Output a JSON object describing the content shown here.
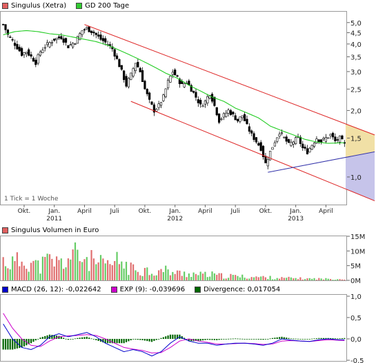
{
  "price_legend": [
    {
      "label": "Singulus (Xetra)",
      "color": "#e06060"
    },
    {
      "label": "GD 200 Tage",
      "color": "#33cc33"
    }
  ],
  "volume_legend": {
    "label": "Singulus Volumen in Euro",
    "color": "#e06060"
  },
  "macd_legend": [
    {
      "label": "MACD (26, 12): -0,022642",
      "color": "#0000cc"
    },
    {
      "label": "EXP (9): -0,039696",
      "color": "#cc00cc"
    },
    {
      "label": "Divergence: 0,017054",
      "color": "#006600"
    }
  ],
  "tick_note": "1 Tick = 1 Woche",
  "chart_data": [
    {
      "type": "candlestick",
      "title": "Singulus (Xetra)",
      "scale": "log",
      "ylim": [
        0.75,
        5.6
      ],
      "y_ticks": [
        "5,0",
        "4,5",
        "4,0",
        "3,5",
        "3,0",
        "2,5",
        "2,0",
        "1,5",
        "1,0"
      ],
      "y_tick_values": [
        5.0,
        4.5,
        4.0,
        3.5,
        3.0,
        2.5,
        2.0,
        1.5,
        1.0
      ],
      "x_ticks": [
        {
          "label": "Okt.",
          "week": 9
        },
        {
          "label": "Jan.",
          "week": 22
        },
        {
          "label": "April",
          "week": 35
        },
        {
          "label": "Juli",
          "week": 48
        },
        {
          "label": "Okt.",
          "week": 61
        },
        {
          "label": "Jan.",
          "week": 74
        },
        {
          "label": "April",
          "week": 87
        },
        {
          "label": "Juli",
          "week": 100
        },
        {
          "label": "Okt.",
          "week": 113
        },
        {
          "label": "Jan.",
          "week": 126
        },
        {
          "label": "April",
          "week": 139
        }
      ],
      "year_labels": [
        {
          "label": "2011",
          "week": 22
        },
        {
          "label": "2012",
          "week": 74
        },
        {
          "label": "2013",
          "week": 126
        }
      ],
      "close_anchors": [
        [
          0,
          4.9
        ],
        [
          2,
          4.4
        ],
        [
          5,
          4.0
        ],
        [
          8,
          3.6
        ],
        [
          10,
          3.7
        ],
        [
          14,
          3.3
        ],
        [
          16,
          3.7
        ],
        [
          18,
          3.9
        ],
        [
          22,
          4.2
        ],
        [
          25,
          4.3
        ],
        [
          28,
          3.9
        ],
        [
          31,
          4.1
        ],
        [
          34,
          4.6
        ],
        [
          36,
          4.7
        ],
        [
          39,
          4.5
        ],
        [
          42,
          4.2
        ],
        [
          45,
          4.0
        ],
        [
          47,
          3.8
        ],
        [
          49,
          3.4
        ],
        [
          51,
          3.0
        ],
        [
          53,
          2.6
        ],
        [
          55,
          2.9
        ],
        [
          57,
          3.3
        ],
        [
          59,
          3.0
        ],
        [
          61,
          2.5
        ],
        [
          63,
          2.2
        ],
        [
          65,
          2.0
        ],
        [
          67,
          2.1
        ],
        [
          69,
          2.3
        ],
        [
          71,
          2.7
        ],
        [
          73,
          3.0
        ],
        [
          75,
          2.8
        ],
        [
          77,
          2.6
        ],
        [
          79,
          2.7
        ],
        [
          81,
          2.5
        ],
        [
          83,
          2.3
        ],
        [
          85,
          2.1
        ],
        [
          87,
          2.2
        ],
        [
          89,
          2.4
        ],
        [
          91,
          2.1
        ],
        [
          93,
          1.8
        ],
        [
          95,
          1.9
        ],
        [
          97,
          2.0
        ],
        [
          99,
          1.9
        ],
        [
          101,
          1.8
        ],
        [
          103,
          1.9
        ],
        [
          105,
          1.7
        ],
        [
          107,
          1.55
        ],
        [
          109,
          1.45
        ],
        [
          111,
          1.35
        ],
        [
          113,
          1.15
        ],
        [
          115,
          1.3
        ],
        [
          117,
          1.45
        ],
        [
          119,
          1.6
        ],
        [
          121,
          1.5
        ],
        [
          123,
          1.4
        ],
        [
          125,
          1.45
        ],
        [
          127,
          1.5
        ],
        [
          129,
          1.35
        ],
        [
          131,
          1.3
        ],
        [
          133,
          1.4
        ],
        [
          135,
          1.5
        ],
        [
          137,
          1.45
        ],
        [
          139,
          1.5
        ],
        [
          141,
          1.55
        ],
        [
          143,
          1.45
        ],
        [
          145,
          1.5
        ],
        [
          147,
          1.4
        ]
      ],
      "sma200_anchors": [
        [
          0,
          4.4
        ],
        [
          5,
          4.55
        ],
        [
          10,
          4.6
        ],
        [
          15,
          4.55
        ],
        [
          20,
          4.45
        ],
        [
          25,
          4.4
        ],
        [
          30,
          4.3
        ],
        [
          35,
          4.2
        ],
        [
          40,
          4.1
        ],
        [
          45,
          3.95
        ],
        [
          50,
          3.75
        ],
        [
          55,
          3.55
        ],
        [
          60,
          3.35
        ],
        [
          65,
          3.15
        ],
        [
          70,
          2.95
        ],
        [
          75,
          2.8
        ],
        [
          80,
          2.6
        ],
        [
          85,
          2.45
        ],
        [
          90,
          2.3
        ],
        [
          95,
          2.2
        ],
        [
          100,
          2.05
        ],
        [
          105,
          1.95
        ],
        [
          110,
          1.85
        ],
        [
          115,
          1.7
        ],
        [
          120,
          1.62
        ],
        [
          125,
          1.55
        ],
        [
          130,
          1.48
        ],
        [
          135,
          1.44
        ],
        [
          140,
          1.42
        ],
        [
          147,
          1.43
        ]
      ],
      "trend_channel": [
        {
          "from": [
            35,
            4.9
          ],
          "to": [
            160,
            1.55
          ]
        },
        {
          "from": [
            55,
            2.2
          ],
          "to": [
            160,
            0.78
          ]
        },
        {
          "from": [
            114,
            1.05
          ],
          "to": [
            160,
            1.3
          ]
        }
      ],
      "weeks": 148
    },
    {
      "type": "bar",
      "title": "Singulus Volumen in Euro",
      "y_ticks": [
        "15M",
        "10M",
        "5M",
        "0M"
      ],
      "y_tick_values": [
        15,
        10,
        5,
        0
      ],
      "unit": "M",
      "ylim": [
        0,
        15
      ],
      "volume_anchors": [
        [
          0,
          7
        ],
        [
          5,
          6
        ],
        [
          10,
          8
        ],
        [
          15,
          5
        ],
        [
          20,
          7
        ],
        [
          25,
          6
        ],
        [
          30,
          9
        ],
        [
          35,
          8
        ],
        [
          40,
          6
        ],
        [
          45,
          5
        ],
        [
          50,
          7
        ],
        [
          55,
          4
        ],
        [
          60,
          4
        ],
        [
          65,
          3
        ],
        [
          70,
          3.5
        ],
        [
          75,
          2.5
        ],
        [
          80,
          2.5
        ],
        [
          85,
          2
        ],
        [
          90,
          2
        ],
        [
          95,
          1.5
        ],
        [
          100,
          1.5
        ],
        [
          105,
          1.2
        ],
        [
          110,
          1.2
        ],
        [
          115,
          1.0
        ],
        [
          120,
          0.8
        ],
        [
          125,
          0.8
        ],
        [
          130,
          0.6
        ],
        [
          135,
          0.6
        ],
        [
          140,
          0.5
        ],
        [
          147,
          0.5
        ]
      ]
    },
    {
      "type": "line",
      "title": "MACD (26, 12)",
      "y_ticks": [
        "1,0",
        "0,5",
        "0,0",
        "-0,5"
      ],
      "y_tick_values": [
        1.0,
        0.5,
        0.0,
        -0.5
      ],
      "ylim": [
        -0.5,
        1.0
      ],
      "series": [
        {
          "name": "MACD (26, 12)",
          "color": "#0000cc"
        },
        {
          "name": "EXP (9)",
          "color": "#cc00cc"
        },
        {
          "name": "Divergence",
          "color": "#006600"
        }
      ],
      "macd_anchors": [
        [
          0,
          0.35
        ],
        [
          4,
          0.0
        ],
        [
          8,
          -0.2
        ],
        [
          12,
          -0.25
        ],
        [
          16,
          -0.15
        ],
        [
          20,
          0.05
        ],
        [
          24,
          0.12
        ],
        [
          28,
          0.05
        ],
        [
          32,
          0.1
        ],
        [
          36,
          0.15
        ],
        [
          40,
          0.05
        ],
        [
          44,
          -0.1
        ],
        [
          48,
          -0.2
        ],
        [
          52,
          -0.3
        ],
        [
          56,
          -0.25
        ],
        [
          60,
          -0.3
        ],
        [
          64,
          -0.4
        ],
        [
          68,
          -0.3
        ],
        [
          72,
          -0.1
        ],
        [
          76,
          0.05
        ],
        [
          80,
          -0.05
        ],
        [
          84,
          -0.1
        ],
        [
          88,
          -0.1
        ],
        [
          92,
          -0.15
        ],
        [
          96,
          -0.12
        ],
        [
          100,
          -0.1
        ],
        [
          104,
          -0.1
        ],
        [
          108,
          -0.12
        ],
        [
          112,
          -0.15
        ],
        [
          116,
          -0.1
        ],
        [
          120,
          0.0
        ],
        [
          124,
          -0.03
        ],
        [
          128,
          -0.05
        ],
        [
          132,
          -0.06
        ],
        [
          136,
          -0.02
        ],
        [
          140,
          0.0
        ],
        [
          144,
          -0.02
        ],
        [
          147,
          -0.02
        ]
      ],
      "signal_anchors": [
        [
          0,
          0.6
        ],
        [
          4,
          0.25
        ],
        [
          8,
          0.0
        ],
        [
          12,
          -0.15
        ],
        [
          16,
          -0.18
        ],
        [
          20,
          -0.05
        ],
        [
          24,
          0.05
        ],
        [
          28,
          0.07
        ],
        [
          32,
          0.08
        ],
        [
          36,
          0.1
        ],
        [
          40,
          0.08
        ],
        [
          44,
          0.0
        ],
        [
          48,
          -0.1
        ],
        [
          52,
          -0.2
        ],
        [
          56,
          -0.24
        ],
        [
          60,
          -0.27
        ],
        [
          64,
          -0.33
        ],
        [
          68,
          -0.32
        ],
        [
          72,
          -0.2
        ],
        [
          76,
          -0.05
        ],
        [
          80,
          0.0
        ],
        [
          84,
          -0.05
        ],
        [
          88,
          -0.08
        ],
        [
          92,
          -0.12
        ],
        [
          96,
          -0.12
        ],
        [
          100,
          -0.11
        ],
        [
          104,
          -0.1
        ],
        [
          108,
          -0.11
        ],
        [
          112,
          -0.13
        ],
        [
          116,
          -0.12
        ],
        [
          120,
          -0.05
        ],
        [
          124,
          -0.04
        ],
        [
          128,
          -0.05
        ],
        [
          132,
          -0.06
        ],
        [
          136,
          -0.04
        ],
        [
          140,
          -0.02
        ],
        [
          144,
          -0.03
        ],
        [
          147,
          -0.04
        ]
      ]
    }
  ]
}
